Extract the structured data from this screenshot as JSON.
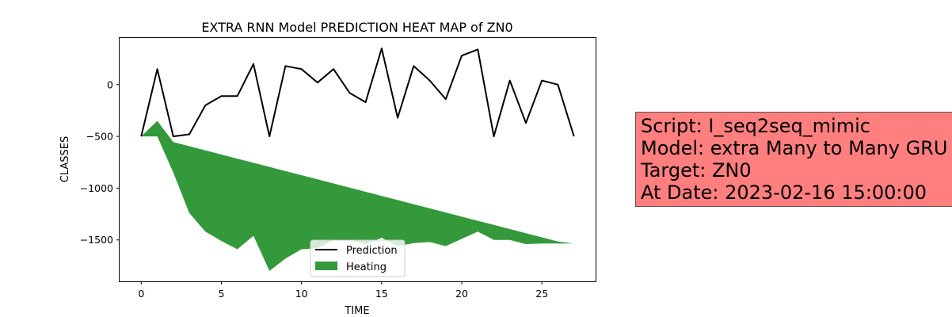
{
  "chart_data": {
    "type": "line",
    "title": "EXTRA RNN Model PREDICTION HEAT MAP of ZN0",
    "xlabel": "TIME",
    "ylabel": "CLASSES",
    "xlim": [
      -1.35,
      28.35
    ],
    "ylim": [
      -1900,
      450
    ],
    "xticks": [
      0,
      5,
      10,
      15,
      20,
      25
    ],
    "yticks": [
      0,
      -500,
      -1000,
      -1500
    ],
    "xtick_labels": [
      "0",
      "5",
      "10",
      "15",
      "20",
      "25"
    ],
    "ytick_labels": [
      "0",
      "−500",
      "−1000",
      "−1500"
    ],
    "grid": false,
    "legend_position": "lower center",
    "series": [
      {
        "name": "Prediction",
        "type": "line",
        "color": "#000000",
        "x": [
          0,
          1,
          2,
          3,
          4,
          5,
          6,
          7,
          8,
          9,
          10,
          11,
          12,
          13,
          14,
          15,
          16,
          17,
          18,
          19,
          20,
          21,
          22,
          23,
          24,
          25,
          26,
          27
        ],
        "values": [
          -500,
          150,
          -500,
          -480,
          -200,
          -110,
          -110,
          200,
          -500,
          180,
          150,
          20,
          150,
          -80,
          -170,
          350,
          -320,
          180,
          40,
          -140,
          280,
          340,
          -500,
          40,
          -370,
          40,
          0,
          -500
        ]
      },
      {
        "name": "Heating",
        "type": "area",
        "color": "#33993a",
        "x": [
          0,
          1,
          2,
          3,
          4,
          5,
          6,
          7,
          8,
          9,
          10,
          11,
          12,
          13,
          14,
          15,
          16,
          17,
          18,
          19,
          20,
          21,
          22,
          23,
          24,
          25,
          26,
          27
        ],
        "upper": [
          -500,
          -350,
          -555,
          -595,
          -635,
          -675,
          -715,
          -755,
          -795,
          -835,
          -875,
          -915,
          -955,
          -995,
          -1035,
          -1075,
          -1115,
          -1155,
          -1195,
          -1235,
          -1275,
          -1315,
          -1355,
          -1395,
          -1435,
          -1475,
          -1515,
          -1535
        ],
        "lower": [
          -500,
          -500,
          -850,
          -1240,
          -1420,
          -1510,
          -1590,
          -1460,
          -1800,
          -1680,
          -1590,
          -1580,
          -1500,
          -1500,
          -1540,
          -1480,
          -1560,
          -1530,
          -1520,
          -1560,
          -1490,
          -1420,
          -1500,
          -1500,
          -1540,
          -1535,
          -1535,
          -1535
        ]
      }
    ]
  },
  "info_box": {
    "lines": [
      "Script: I_seq2seq_mimic",
      "Model: extra Many to Many GRU",
      "Target: ZN0",
      "At Date: 2023-02-16 15:00:00"
    ],
    "background": "#ff7f7f"
  }
}
